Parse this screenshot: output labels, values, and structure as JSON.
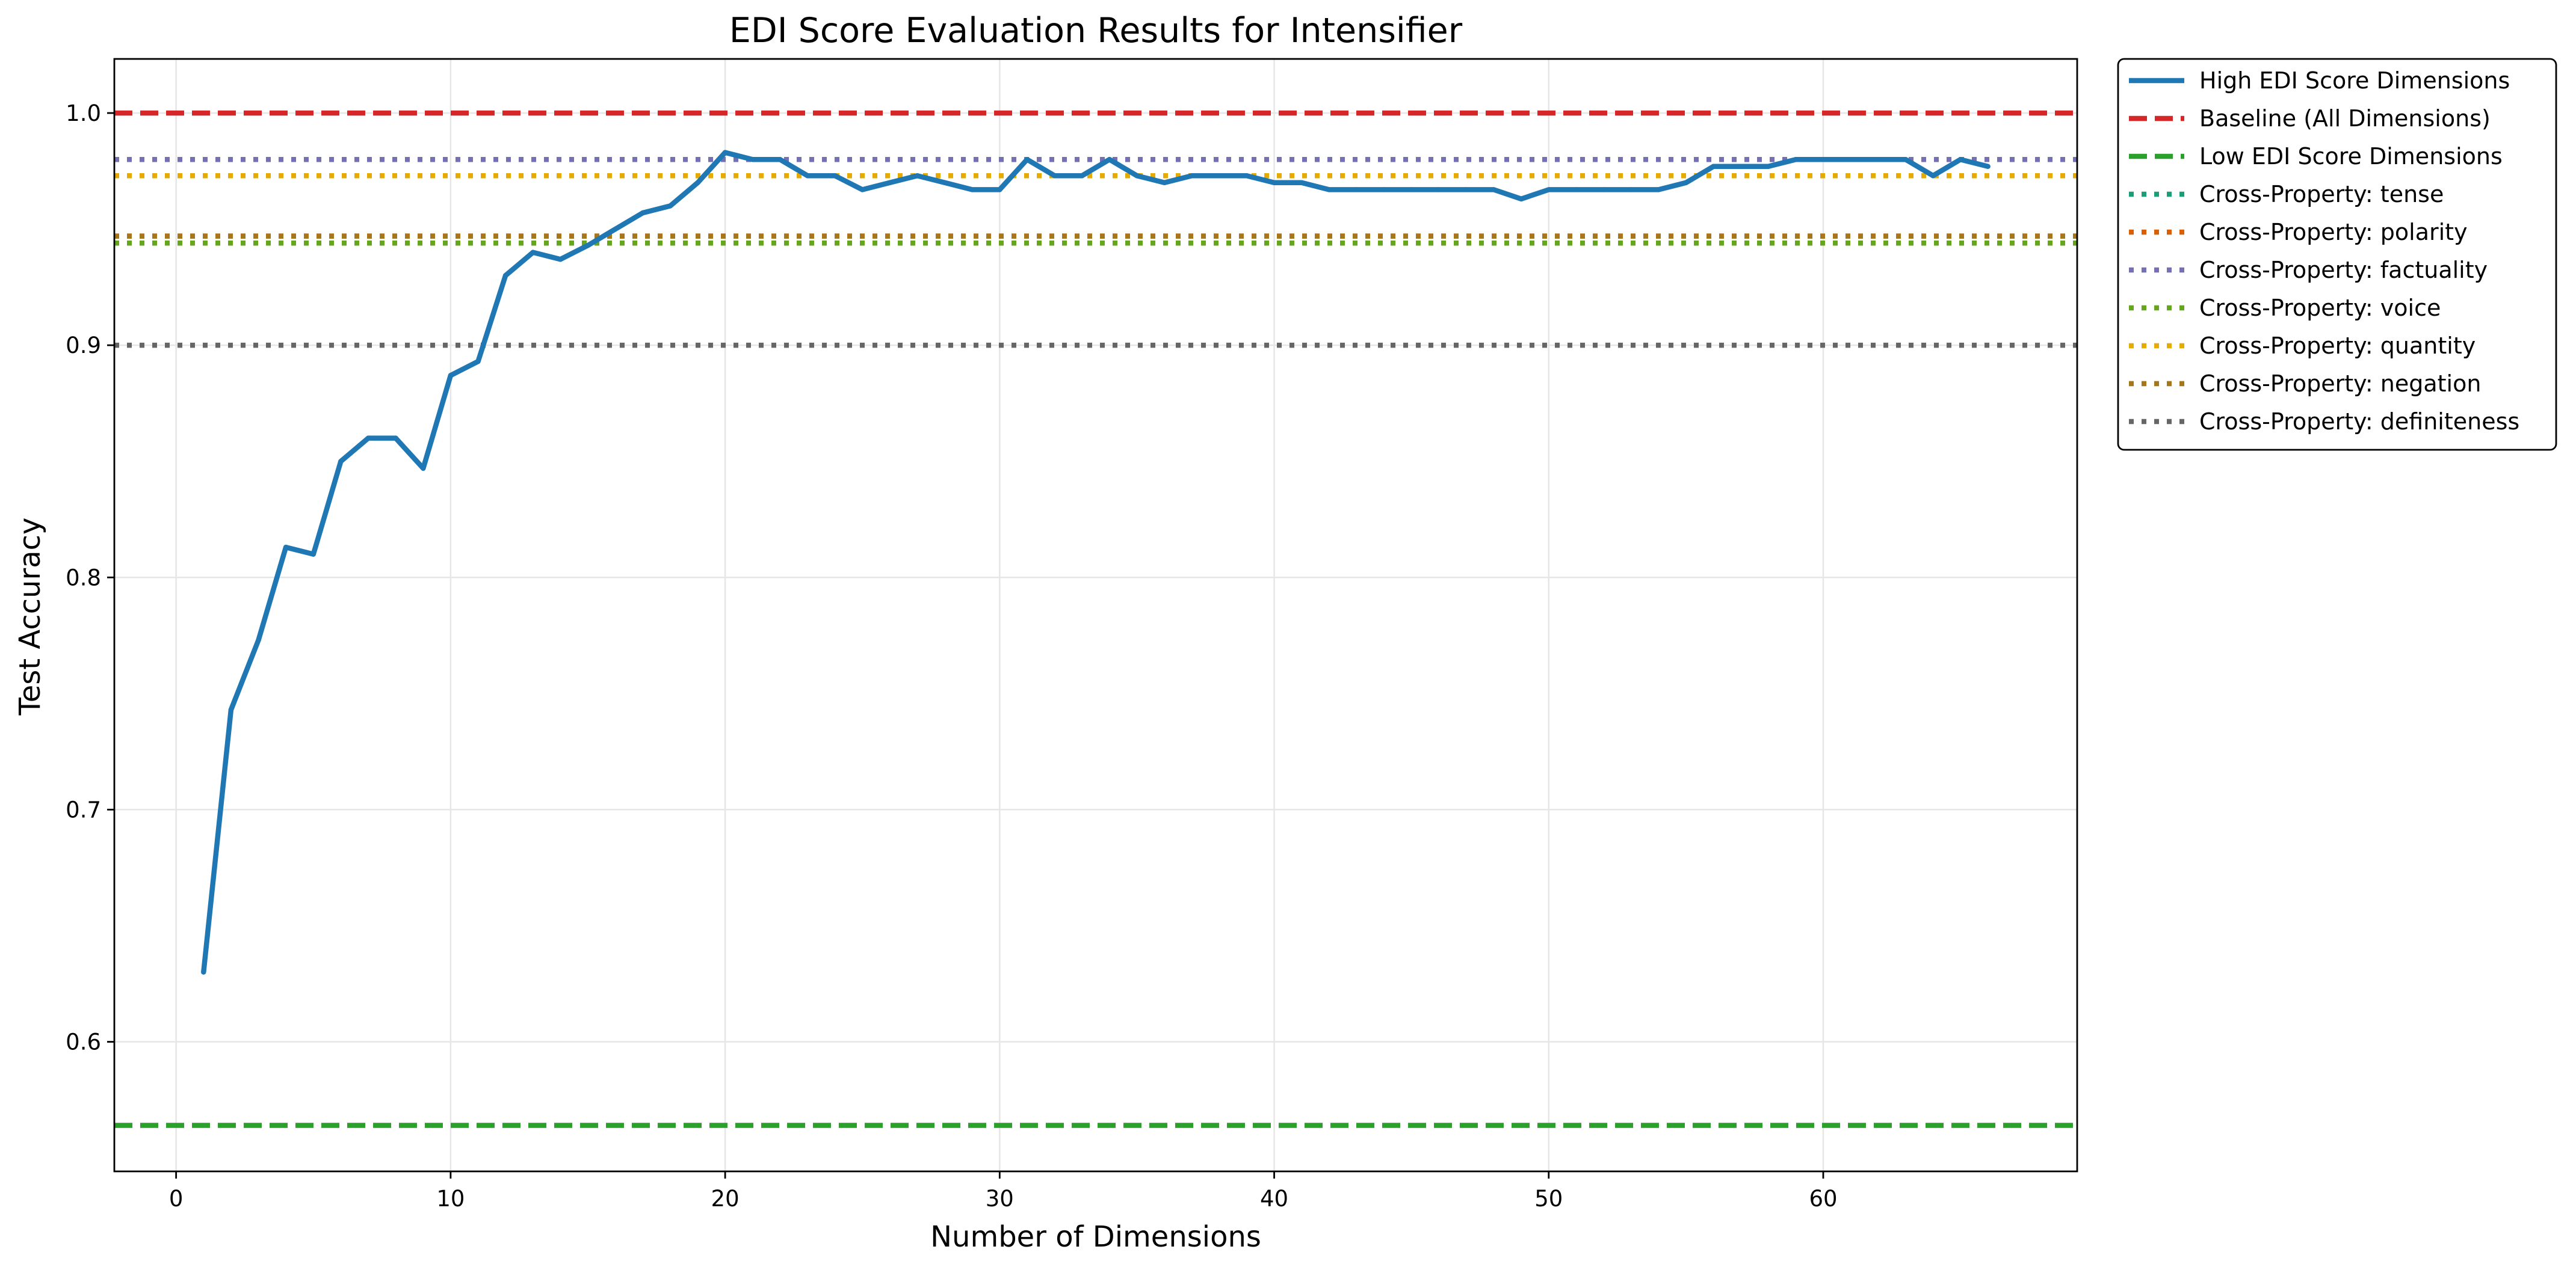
{
  "chart_data": {
    "type": "line",
    "title": "EDI Score Evaluation Results for Intensifier",
    "xlabel": "Number of Dimensions",
    "ylabel": "Test Accuracy",
    "xlim": [
      -2.25,
      69.25
    ],
    "ylim": [
      0.5442,
      1.0233
    ],
    "xticks": [
      0,
      10,
      20,
      30,
      40,
      50,
      60
    ],
    "xtick_labels": [
      "0",
      "10",
      "20",
      "30",
      "40",
      "50",
      "60"
    ],
    "yticks": [
      0.6,
      0.7,
      0.8,
      0.9,
      1.0
    ],
    "ytick_labels": [
      "0.6",
      "0.7",
      "0.8",
      "0.9",
      "1.0"
    ],
    "grid": true,
    "legend_position": "outside-top-right",
    "series": [
      {
        "name": "High EDI Score Dimensions",
        "kind": "line",
        "color": "#1f77b4",
        "dash": "solid",
        "x": [
          1,
          2,
          3,
          4,
          5,
          6,
          7,
          8,
          9,
          10,
          11,
          12,
          13,
          14,
          15,
          16,
          17,
          18,
          19,
          20,
          21,
          22,
          23,
          24,
          25,
          26,
          27,
          28,
          29,
          30,
          31,
          32,
          33,
          34,
          35,
          36,
          37,
          38,
          39,
          40,
          41,
          42,
          43,
          44,
          45,
          46,
          47,
          48,
          49,
          50,
          51,
          52,
          53,
          54,
          55,
          56,
          57,
          58,
          59,
          60,
          61,
          62,
          63,
          64,
          65,
          66
        ],
        "y": [
          0.63,
          0.743,
          0.773,
          0.813,
          0.81,
          0.85,
          0.86,
          0.86,
          0.847,
          0.887,
          0.893,
          0.93,
          0.94,
          0.937,
          0.943,
          0.95,
          0.957,
          0.96,
          0.97,
          0.983,
          0.98,
          0.98,
          0.973,
          0.973,
          0.967,
          0.97,
          0.973,
          0.97,
          0.967,
          0.967,
          0.98,
          0.973,
          0.973,
          0.98,
          0.973,
          0.97,
          0.973,
          0.973,
          0.973,
          0.97,
          0.97,
          0.967,
          0.967,
          0.967,
          0.967,
          0.967,
          0.967,
          0.967,
          0.963,
          0.967,
          0.967,
          0.967,
          0.967,
          0.967,
          0.97,
          0.977,
          0.977,
          0.977,
          0.98,
          0.98,
          0.98,
          0.98,
          0.98,
          0.973,
          0.98,
          0.977
        ]
      },
      {
        "name": "Baseline (All Dimensions)",
        "kind": "hline",
        "value": 1.0,
        "color": "#d62728",
        "dash": "dashed"
      },
      {
        "name": "Low EDI Score Dimensions",
        "kind": "hline",
        "value": 0.564,
        "color": "#2ca02c",
        "dash": "dashed"
      },
      {
        "name": "Cross-Property: tense",
        "kind": "hline",
        "value": 0.944,
        "color": "#1b9e77",
        "dash": "dotted"
      },
      {
        "name": "Cross-Property: polarity",
        "kind": "hline",
        "value": 0.947,
        "color": "#d95f02",
        "dash": "dotted"
      },
      {
        "name": "Cross-Property: factuality",
        "kind": "hline",
        "value": 0.98,
        "color": "#7570b3",
        "dash": "dotted"
      },
      {
        "name": "Cross-Property: voice",
        "kind": "hline",
        "value": 0.944,
        "color": "#66a61e",
        "dash": "dotted"
      },
      {
        "name": "Cross-Property: quantity",
        "kind": "hline",
        "value": 0.973,
        "color": "#e6ab02",
        "dash": "dotted"
      },
      {
        "name": "Cross-Property: negation",
        "kind": "hline",
        "value": 0.947,
        "color": "#a6761d",
        "dash": "dotted"
      },
      {
        "name": "Cross-Property: definiteness",
        "kind": "hline",
        "value": 0.9,
        "color": "#666666",
        "dash": "dotted"
      }
    ]
  }
}
